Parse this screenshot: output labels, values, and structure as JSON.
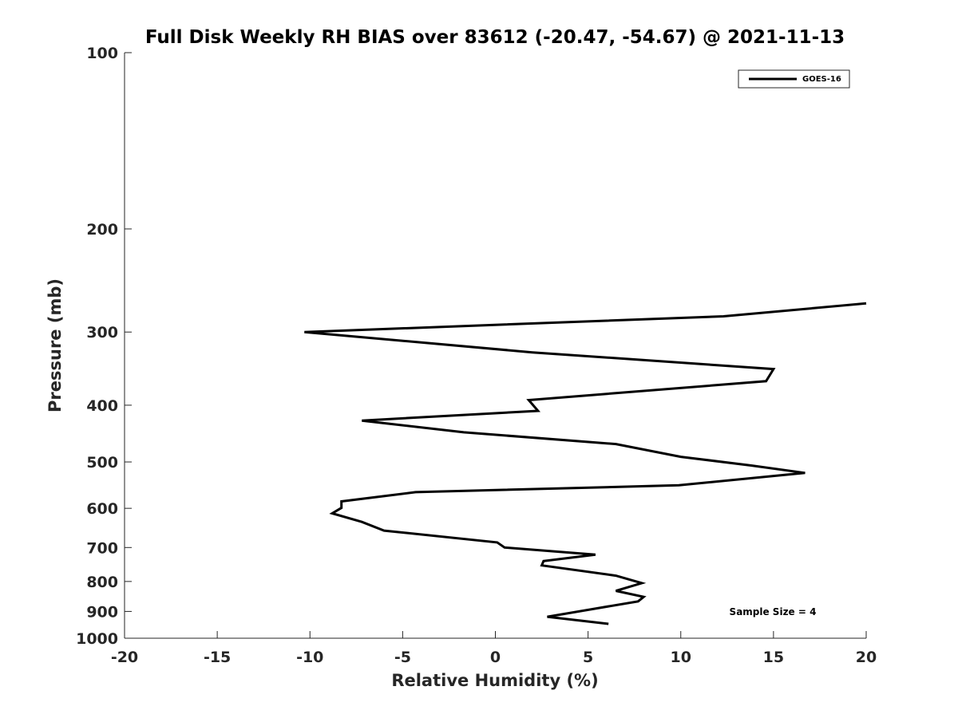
{
  "chart_data": {
    "type": "line",
    "title": "Full Disk Weekly RH BIAS over 83612 (-20.47, -54.67) @ 2021-11-13",
    "xlabel": "Relative Humidity (%)",
    "ylabel": "Pressure (mb)",
    "xlim": [
      -20,
      20
    ],
    "ylim": [
      100,
      1000
    ],
    "y_scale": "log",
    "y_reversed": true,
    "x_ticks": [
      -20,
      -15,
      -10,
      -5,
      0,
      5,
      10,
      15,
      20
    ],
    "y_ticks": [
      100,
      200,
      300,
      400,
      500,
      600,
      700,
      800,
      900,
      1000
    ],
    "grid": false,
    "legend": {
      "position": "top-right",
      "entries": [
        "GOES-16"
      ]
    },
    "annotation": "Sample Size = 4",
    "series": [
      {
        "name": "GOES-16",
        "color": "#000000",
        "points": [
          [
            20.0,
            268
          ],
          [
            12.3,
            282
          ],
          [
            -10.3,
            300
          ],
          [
            2.0,
            325
          ],
          [
            15.0,
            347
          ],
          [
            14.6,
            364
          ],
          [
            1.8,
            392
          ],
          [
            2.3,
            409
          ],
          [
            -7.2,
            425
          ],
          [
            -1.7,
            445
          ],
          [
            6.5,
            466
          ],
          [
            10.0,
            490
          ],
          [
            13.8,
            507
          ],
          [
            16.7,
            522
          ],
          [
            9.9,
            548
          ],
          [
            -4.3,
            563
          ],
          [
            -8.3,
            584
          ],
          [
            -8.3,
            599
          ],
          [
            -8.8,
            612
          ],
          [
            -7.2,
            633
          ],
          [
            -6.0,
            655
          ],
          [
            0.1,
            686
          ],
          [
            0.5,
            700
          ],
          [
            5.4,
            720
          ],
          [
            2.6,
            738
          ],
          [
            2.5,
            751
          ],
          [
            6.5,
            782
          ],
          [
            7.9,
            805
          ],
          [
            6.5,
            830
          ],
          [
            8.0,
            850
          ],
          [
            7.7,
            865
          ],
          [
            2.8,
            919
          ],
          [
            6.1,
            945
          ]
        ]
      }
    ]
  }
}
